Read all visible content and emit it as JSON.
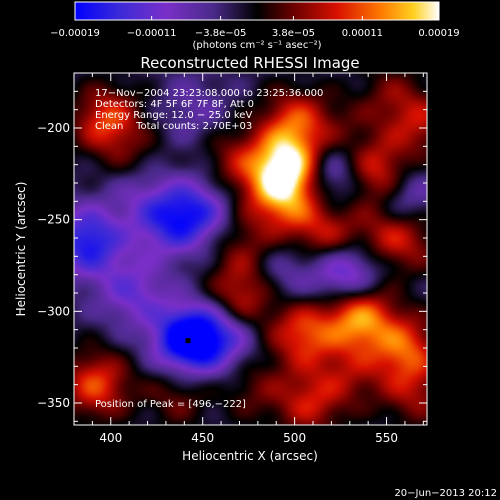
{
  "chart_data": {
    "type": "heatmap",
    "title": "Reconstructed RHESSI Image",
    "xlabel": "Heliocentric X (arcsec)",
    "ylabel": "Heliocentric Y (arcsec)",
    "xlim": [
      380,
      572
    ],
    "ylim": [
      -362,
      -170
    ],
    "xticks": [
      400,
      450,
      500,
      550
    ],
    "yticks": [
      -200,
      -250,
      -300,
      -350
    ],
    "xtick_labels": [
      "400",
      "450",
      "500",
      "550"
    ],
    "ytick_labels": [
      "−200",
      "−250",
      "−300",
      "−350"
    ],
    "colorbar": {
      "range": [
        -0.00019,
        0.00019
      ],
      "ticks": [
        -0.00019,
        -0.00011,
        -3.8e-05,
        3.8e-05,
        0.00011,
        0.00019
      ],
      "tick_labels": [
        "−0.00019",
        "−0.00011",
        "−3.8e−05",
        "3.8e−05",
        "0.00011",
        "0.00019"
      ],
      "unit_label": "(photons cm⁻² s⁻¹ asec⁻²)",
      "colors": [
        "#0000ff",
        "#3a2ad8",
        "#7a2fc8",
        "#5a3aa8",
        "#2a1a4a",
        "#000000",
        "#6a0000",
        "#d81000",
        "#ff7a00",
        "#ffd020",
        "#ffffff"
      ]
    },
    "annotations": [
      "17−Nov−2004 23:23:08.000 to 23:25:36.000",
      "Detectors: 4F 5F 6F 7F 8F, Att 0",
      "Energy Range: 12.0 − 25.0 keV",
      "Clean    Total counts: 2.70E+03"
    ],
    "peak_label": "Position of Peak = [496,−222]",
    "peak_position": [
      496,
      -222
    ],
    "blobs": [
      {
        "x": 398,
        "y": -196,
        "v": 0.6
      },
      {
        "x": 392,
        "y": -340,
        "v": 0.6
      },
      {
        "x": 388,
        "y": -262,
        "v": -0.7
      },
      {
        "x": 414,
        "y": -220,
        "v": 0.25
      },
      {
        "x": 412,
        "y": -290,
        "v": -0.4
      },
      {
        "x": 416,
        "y": -232,
        "v": -0.3
      },
      {
        "x": 430,
        "y": -252,
        "v": -0.45
      },
      {
        "x": 447,
        "y": -246,
        "v": -0.55
      },
      {
        "x": 445,
        "y": -190,
        "v": -0.2
      },
      {
        "x": 442,
        "y": -316,
        "v": -1.0
      },
      {
        "x": 436,
        "y": -345,
        "v": 0.3
      },
      {
        "x": 462,
        "y": -312,
        "v": -0.5
      },
      {
        "x": 468,
        "y": -218,
        "v": 0.35
      },
      {
        "x": 472,
        "y": -265,
        "v": 0.3
      },
      {
        "x": 470,
        "y": -294,
        "v": 0.55
      },
      {
        "x": 478,
        "y": -342,
        "v": 0.25
      },
      {
        "x": 490,
        "y": -238,
        "v": 0.45
      },
      {
        "x": 496,
        "y": -222,
        "v": 1.0
      },
      {
        "x": 500,
        "y": -197,
        "v": 0.55
      },
      {
        "x": 495,
        "y": -278,
        "v": -0.25
      },
      {
        "x": 505,
        "y": -312,
        "v": 0.6
      },
      {
        "x": 506,
        "y": -250,
        "v": 0.3
      },
      {
        "x": 508,
        "y": -350,
        "v": 0.45
      },
      {
        "x": 520,
        "y": -225,
        "v": -0.45
      },
      {
        "x": 522,
        "y": -262,
        "v": 0.45
      },
      {
        "x": 525,
        "y": -202,
        "v": 0.2
      },
      {
        "x": 528,
        "y": -278,
        "v": -0.7
      },
      {
        "x": 535,
        "y": -303,
        "v": 0.8
      },
      {
        "x": 530,
        "y": -335,
        "v": 0.3
      },
      {
        "x": 546,
        "y": -226,
        "v": 0.7
      },
      {
        "x": 552,
        "y": -258,
        "v": 0.45
      },
      {
        "x": 552,
        "y": -182,
        "v": 0.25
      },
      {
        "x": 557,
        "y": -237,
        "v": -0.5
      },
      {
        "x": 560,
        "y": -320,
        "v": 0.6
      },
      {
        "x": 568,
        "y": -198,
        "v": 0.4
      },
      {
        "x": 566,
        "y": -262,
        "v": 0.2
      },
      {
        "x": 565,
        "y": -345,
        "v": 0.35
      }
    ]
  },
  "footer": {
    "date": "20−Jun−2013 20:12"
  }
}
